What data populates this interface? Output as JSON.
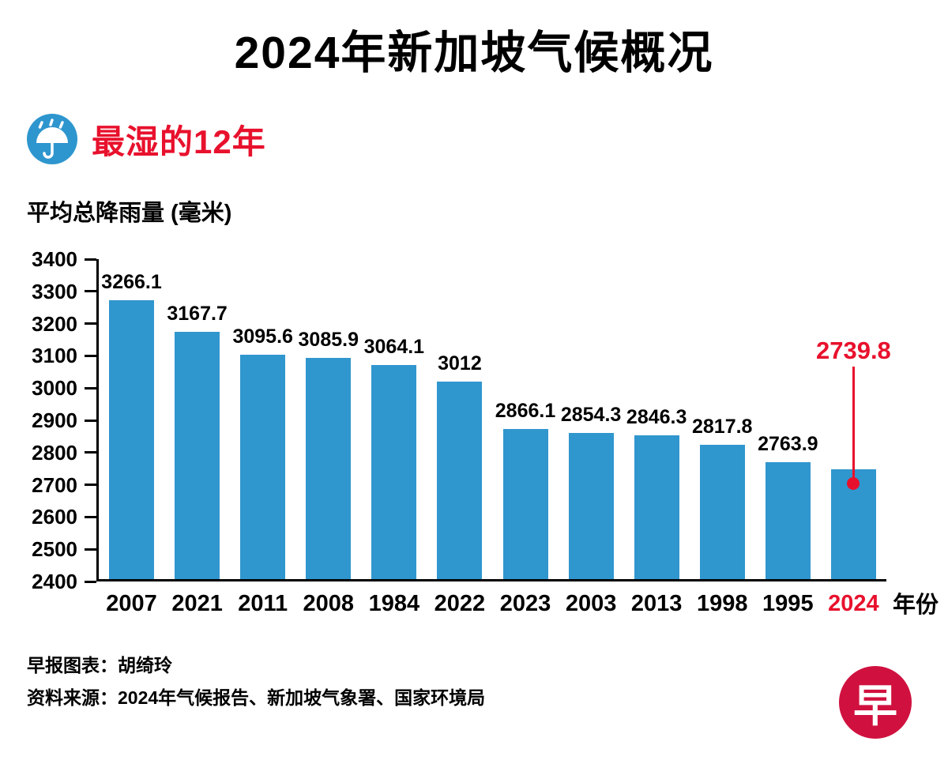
{
  "title": "2024年新加坡气候概况",
  "section": {
    "label": "最湿的12年",
    "icon": "rain-umbrella-icon"
  },
  "chart_data": {
    "type": "bar",
    "title": "最湿的12年",
    "ylabel": "平均总降雨量 (毫米)",
    "xlabel": "年份",
    "categories": [
      "2007",
      "2021",
      "2011",
      "2008",
      "1984",
      "2022",
      "2023",
      "2003",
      "2013",
      "1998",
      "1995",
      "2024"
    ],
    "values": [
      3266.1,
      3167.7,
      3095.6,
      3085.9,
      3064.1,
      3012,
      2866.1,
      2854.3,
      2846.3,
      2817.8,
      2763.9,
      2739.8
    ],
    "value_labels": [
      "3266.1",
      "3167.7",
      "3095.6",
      "3085.9",
      "3064.1",
      "3012",
      "2866.1",
      "2854.3",
      "2846.3",
      "2817.8",
      "2763.9",
      "2739.8"
    ],
    "ylim": [
      2400,
      3400
    ],
    "ytick_step": 100,
    "grid": false,
    "legend": "none",
    "highlight_category": "2024",
    "bar_color": "#3096ce",
    "highlight_color": "#e8112d"
  },
  "footer": {
    "credit": "早报图表：胡绮玲",
    "source": "资料来源：2024年气候报告、新加坡气象署、国家环境局"
  },
  "logo": {
    "text": "早"
  },
  "colors": {
    "bar_blue": "#3096ce",
    "accent_red": "#e8112d",
    "icon_blue": "#2e96ce",
    "logo_red": "#d0113f",
    "text_black": "#000000",
    "background": "#ffffff"
  }
}
